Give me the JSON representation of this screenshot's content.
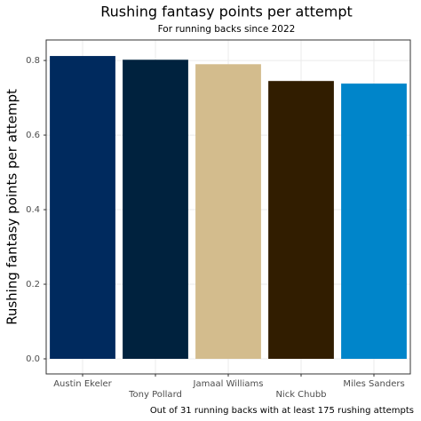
{
  "chart_data": {
    "type": "bar",
    "title": "Rushing fantasy points per attempt",
    "subtitle": "For running backs since 2022",
    "y_label": "Rushing fantasy points per attempt",
    "caption": "Out of 31 running backs with at least 175 rushing attempts",
    "categories": [
      "Austin Ekeler",
      "Tony Pollard",
      "Jamaal Williams",
      "Nick Chubb",
      "Miles Sanders"
    ],
    "values": [
      0.812,
      0.802,
      0.79,
      0.745,
      0.738
    ],
    "colors": [
      "#002a5e",
      "#00223e",
      "#d3bc8d",
      "#311d00",
      "#0085ca"
    ],
    "ylim": [
      -0.0405,
      0.855
    ],
    "yticks": [
      {
        "value": 0,
        "label": "0.0"
      },
      {
        "value": 0.2,
        "label": "0.2"
      },
      {
        "value": 0.4,
        "label": "0.4"
      },
      {
        "value": 0.6,
        "label": "0.6"
      },
      {
        "value": 0.8,
        "label": "0.8"
      }
    ],
    "grid": true
  }
}
